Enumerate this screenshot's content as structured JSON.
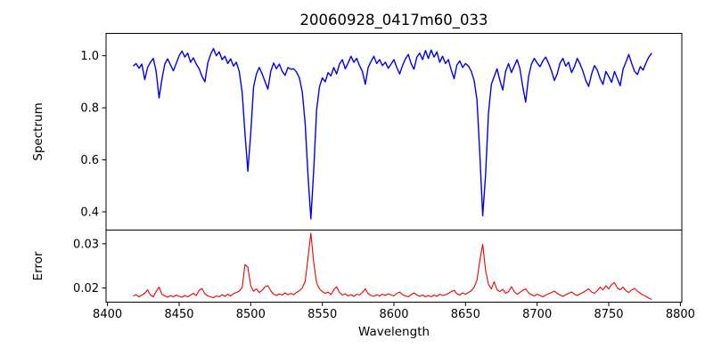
{
  "chart_data": {
    "type": "line",
    "title": "20060928_0417m60_033",
    "xlabel": "Wavelength",
    "xlim": [
      8399,
      8801
    ],
    "grid": false,
    "legend": "none",
    "x_ticks": [
      8400,
      8450,
      8500,
      8550,
      8600,
      8650,
      8700,
      8750,
      8800
    ],
    "x_tick_labels": [
      "8400",
      "8450",
      "8500",
      "8550",
      "8600",
      "8650",
      "8700",
      "8750",
      "8800"
    ],
    "panels": [
      {
        "name": "spectrum",
        "ylabel": "Spectrum",
        "color": "#0000ee",
        "ylim": [
          0.33,
          1.086
        ],
        "y_ticks": [
          1.0,
          0.8,
          0.6,
          0.4
        ],
        "y_tick_labels": [
          "1.0",
          "0.8",
          "0.6",
          "0.4"
        ],
        "x_start": 8418,
        "x_step": 2,
        "values": [
          0.96,
          0.97,
          0.952,
          0.968,
          0.908,
          0.955,
          0.975,
          0.99,
          0.94,
          0.838,
          0.91,
          0.968,
          0.988,
          0.965,
          0.942,
          0.97,
          1.0,
          1.018,
          0.995,
          1.01,
          0.975,
          0.992,
          0.968,
          0.95,
          0.92,
          0.9,
          0.972,
          1.005,
          1.028,
          1.0,
          1.015,
          0.985,
          0.998,
          0.97,
          0.988,
          0.96,
          0.975,
          0.94,
          0.86,
          0.7,
          0.556,
          0.7,
          0.88,
          0.93,
          0.955,
          0.93,
          0.9,
          0.872,
          0.94,
          0.972,
          0.95,
          0.968,
          0.94,
          0.925,
          0.955,
          0.948,
          0.95,
          0.938,
          0.915,
          0.86,
          0.74,
          0.54,
          0.373,
          0.56,
          0.79,
          0.88,
          0.915,
          0.9,
          0.935,
          0.922,
          0.955,
          0.93,
          0.968,
          0.985,
          0.95,
          0.972,
          0.998,
          0.975,
          0.99,
          0.962,
          0.94,
          0.89,
          0.955,
          0.978,
          0.998,
          0.97,
          0.985,
          0.962,
          0.975,
          0.952,
          0.968,
          0.985,
          0.955,
          0.93,
          0.962,
          0.988,
          1.005,
          0.97,
          0.948,
          0.995,
          1.01,
          0.985,
          1.02,
          0.99,
          1.022,
          0.995,
          1.015,
          0.975,
          0.998,
          0.97,
          0.985,
          0.945,
          0.912,
          0.965,
          0.98,
          0.955,
          0.97,
          0.96,
          0.94,
          0.905,
          0.83,
          0.62,
          0.385,
          0.54,
          0.78,
          0.89,
          0.92,
          0.95,
          0.905,
          0.868,
          0.94,
          0.97,
          0.935,
          0.96,
          0.985,
          0.95,
          0.88,
          0.822,
          0.92,
          0.968,
          0.99,
          0.972,
          0.958,
          0.98,
          0.995,
          0.97,
          0.942,
          0.905,
          0.93,
          0.972,
          0.99,
          0.96,
          0.975,
          0.935,
          0.958,
          0.99,
          0.968,
          0.94,
          0.905,
          0.882,
          0.93,
          0.962,
          0.945,
          0.912,
          0.89,
          0.94,
          0.92,
          0.898,
          0.94,
          0.912,
          0.885,
          0.948,
          0.975,
          1.005,
          0.97,
          0.94,
          0.928,
          0.958,
          0.945,
          0.972,
          0.995,
          1.01
        ]
      },
      {
        "name": "error",
        "ylabel": "Error",
        "color": "#ee0000",
        "ylim": [
          0.0168,
          0.0331
        ],
        "y_ticks": [
          0.03,
          0.02
        ],
        "y_tick_labels": [
          "0.03",
          "0.02"
        ],
        "x_start": 8418,
        "x_step": 2,
        "values": [
          0.0182,
          0.0185,
          0.018,
          0.0184,
          0.0188,
          0.0196,
          0.0184,
          0.018,
          0.0192,
          0.0202,
          0.0186,
          0.0182,
          0.0179,
          0.0183,
          0.018,
          0.0184,
          0.0181,
          0.0179,
          0.0183,
          0.018,
          0.0184,
          0.0188,
          0.0183,
          0.0195,
          0.0199,
          0.0187,
          0.0182,
          0.018,
          0.0178,
          0.0182,
          0.018,
          0.0185,
          0.0181,
          0.0186,
          0.0182,
          0.0187,
          0.019,
          0.0193,
          0.0201,
          0.0253,
          0.0247,
          0.0205,
          0.0193,
          0.0198,
          0.019,
          0.0195,
          0.0203,
          0.0205,
          0.0194,
          0.0186,
          0.0183,
          0.0187,
          0.0184,
          0.0189,
          0.0185,
          0.0188,
          0.0185,
          0.019,
          0.0194,
          0.02,
          0.0215,
          0.0268,
          0.0324,
          0.0258,
          0.0212,
          0.0198,
          0.0192,
          0.0188,
          0.0191,
          0.0185,
          0.0196,
          0.0203,
          0.019,
          0.0184,
          0.0187,
          0.0182,
          0.0185,
          0.0181,
          0.0186,
          0.0184,
          0.019,
          0.0198,
          0.0187,
          0.0183,
          0.0181,
          0.0185,
          0.0182,
          0.0186,
          0.0183,
          0.0187,
          0.0184,
          0.0182,
          0.0188,
          0.0191,
          0.0185,
          0.0182,
          0.018,
          0.0185,
          0.0189,
          0.0184,
          0.0181,
          0.0184,
          0.018,
          0.0183,
          0.018,
          0.0184,
          0.0181,
          0.0186,
          0.0183,
          0.0185,
          0.0188,
          0.0192,
          0.0195,
          0.0187,
          0.0184,
          0.0189,
          0.0186,
          0.019,
          0.0194,
          0.0202,
          0.0218,
          0.0262,
          0.0299,
          0.024,
          0.0208,
          0.0198,
          0.0214,
          0.0196,
          0.0192,
          0.0197,
          0.0188,
          0.0192,
          0.0203,
          0.0192,
          0.0186,
          0.019,
          0.0195,
          0.0198,
          0.0189,
          0.0185,
          0.0182,
          0.0186,
          0.0183,
          0.018,
          0.0184,
          0.0187,
          0.019,
          0.0193,
          0.0188,
          0.0184,
          0.0181,
          0.0185,
          0.0188,
          0.0191,
          0.0186,
          0.0183,
          0.0187,
          0.019,
          0.0194,
          0.0198,
          0.0191,
          0.0188,
          0.0194,
          0.0202,
          0.0196,
          0.0205,
          0.0198,
          0.0208,
          0.0212,
          0.02,
          0.0196,
          0.0202,
          0.0194,
          0.019,
          0.0196,
          0.0199,
          0.0193,
          0.0188,
          0.0184,
          0.0181,
          0.0177,
          0.0174
        ]
      }
    ]
  }
}
